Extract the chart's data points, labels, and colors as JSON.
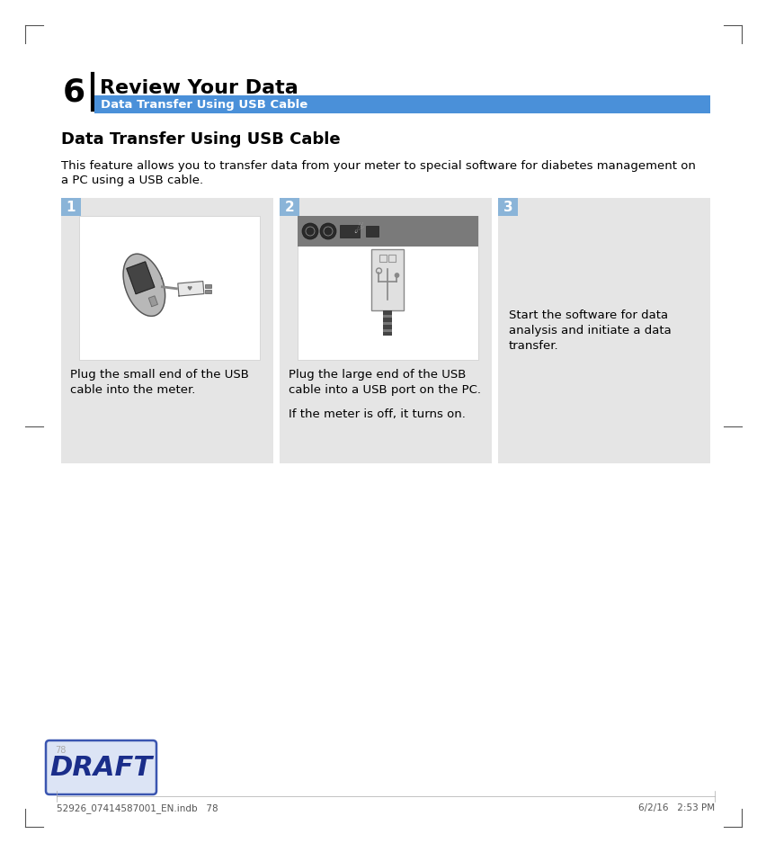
{
  "page_bg": "#ffffff",
  "chapter_number": "6",
  "chapter_title": "Review Your Data",
  "section_bar_color": "#4a90d9",
  "section_bar_text": "Data Transfer Using USB Cable",
  "section_bar_text_color": "#ffffff",
  "content_title": "Data Transfer Using USB Cable",
  "intro_line1": "This feature allows you to transfer data from your meter to special software for diabetes management on",
  "intro_line2": "a PC using a USB cable.",
  "card_bg": "#e5e5e5",
  "card_img_bg": "#ffffff",
  "card1_caption_line1": "Plug the small end of the USB",
  "card1_caption_line2": "cable into the meter.",
  "card2_caption_line1": "Plug the large end of the USB",
  "card2_caption_line2": "cable into a USB port on the PC.",
  "card2_caption_line3": "If the meter is off, it turns on.",
  "card3_text_line1": "Start the software for data",
  "card3_text_line2": "analysis and initiate a data",
  "card3_text_line3": "transfer.",
  "draft_bg": "#dce4f5",
  "draft_text": "DRAFT",
  "draft_text_color": "#1a2d8a",
  "draft_border_color": "#3a55b0",
  "footer_left": "52926_07414587001_EN.indb   78",
  "footer_right": "6/2/16   2:53 PM",
  "page_number": "78",
  "body_text_color": "#000000",
  "tick_color": "#555555"
}
